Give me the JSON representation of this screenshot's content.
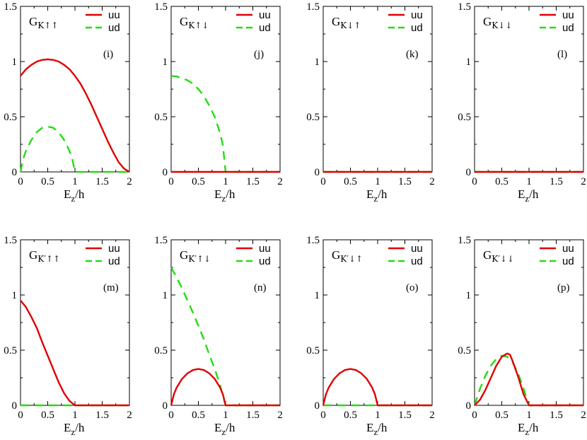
{
  "figure": {
    "colors": {
      "uu": "#e00000",
      "ud": "#22dd11"
    }
  },
  "chart_data": [
    {
      "type": "line",
      "id": "i",
      "panel_label": "(i)",
      "title_main": "G",
      "title_sub": "K↑↑",
      "xlabel_main": "E",
      "xlabel_sub": "z",
      "xlabel_tail": "/h",
      "xlim": [
        0,
        2
      ],
      "ylim": [
        0,
        1.5
      ],
      "xticks": [
        "0",
        "0.5",
        "1",
        "1.5",
        "2"
      ],
      "yticks": [
        "0",
        "0.5",
        "1",
        "1.5"
      ],
      "series": [
        {
          "name": "uu",
          "style": "solid",
          "points": [
            [
              0,
              0.87
            ],
            [
              0.1,
              0.93
            ],
            [
              0.2,
              0.97
            ],
            [
              0.3,
              1.0
            ],
            [
              0.4,
              1.015
            ],
            [
              0.5,
              1.02
            ],
            [
              0.6,
              1.015
            ],
            [
              0.7,
              1.0
            ],
            [
              0.8,
              0.97
            ],
            [
              0.9,
              0.93
            ],
            [
              1.0,
              0.87
            ],
            [
              1.1,
              0.8
            ],
            [
              1.2,
              0.71
            ],
            [
              1.3,
              0.61
            ],
            [
              1.4,
              0.5
            ],
            [
              1.5,
              0.39
            ],
            [
              1.6,
              0.28
            ],
            [
              1.7,
              0.18
            ],
            [
              1.8,
              0.09
            ],
            [
              1.9,
              0.03
            ],
            [
              2.0,
              0.0
            ]
          ]
        },
        {
          "name": "ud",
          "style": "dashed",
          "points": [
            [
              0,
              0
            ],
            [
              0.05,
              0.12
            ],
            [
              0.1,
              0.19
            ],
            [
              0.2,
              0.29
            ],
            [
              0.3,
              0.36
            ],
            [
              0.4,
              0.4
            ],
            [
              0.5,
              0.41
            ],
            [
              0.6,
              0.4
            ],
            [
              0.7,
              0.36
            ],
            [
              0.8,
              0.29
            ],
            [
              0.9,
              0.19
            ],
            [
              0.95,
              0.12
            ],
            [
              1.0,
              0
            ],
            [
              1.2,
              0
            ],
            [
              1.4,
              0
            ],
            [
              1.6,
              0
            ],
            [
              1.8,
              0
            ],
            [
              2.0,
              0
            ]
          ]
        }
      ]
    },
    {
      "type": "line",
      "id": "j",
      "panel_label": "(j)",
      "title_main": "G",
      "title_sub": "K↑↓",
      "xlabel_main": "E",
      "xlabel_sub": "z",
      "xlabel_tail": "/h",
      "xlim": [
        0,
        2
      ],
      "ylim": [
        0,
        1.5
      ],
      "xticks": [
        "0",
        "0.5",
        "1",
        "1.5",
        "2"
      ],
      "yticks": [
        "0",
        "0.5",
        "1",
        "1.5"
      ],
      "series": [
        {
          "name": "uu",
          "style": "solid",
          "points": [
            [
              0,
              0
            ],
            [
              2,
              0
            ]
          ]
        },
        {
          "name": "ud",
          "style": "dashed",
          "points": [
            [
              0,
              0.87
            ],
            [
              0.1,
              0.865
            ],
            [
              0.2,
              0.85
            ],
            [
              0.3,
              0.83
            ],
            [
              0.4,
              0.8
            ],
            [
              0.5,
              0.75
            ],
            [
              0.6,
              0.69
            ],
            [
              0.7,
              0.6
            ],
            [
              0.8,
              0.5
            ],
            [
              0.9,
              0.35
            ],
            [
              0.95,
              0.24
            ],
            [
              1.0,
              0
            ],
            [
              1.5,
              0
            ],
            [
              2.0,
              0
            ]
          ]
        }
      ]
    },
    {
      "type": "line",
      "id": "k",
      "panel_label": "(k)",
      "title_main": "G",
      "title_sub": "K↓↑",
      "xlabel_main": "E",
      "xlabel_sub": "z",
      "xlabel_tail": "/h",
      "xlim": [
        0,
        2
      ],
      "ylim": [
        0,
        1.5
      ],
      "xticks": [
        "0",
        "0.5",
        "1",
        "1.5",
        "2"
      ],
      "yticks": [
        "0",
        "0.5",
        "1",
        "1.5"
      ],
      "series": [
        {
          "name": "uu",
          "style": "solid",
          "points": [
            [
              0,
              0
            ],
            [
              2,
              0
            ]
          ]
        },
        {
          "name": "ud",
          "style": "dashed",
          "points": [
            [
              0,
              0
            ],
            [
              2,
              0
            ]
          ]
        }
      ]
    },
    {
      "type": "line",
      "id": "l",
      "panel_label": "(l)",
      "title_main": "G",
      "title_sub": "K↓↓",
      "xlabel_main": "E",
      "xlabel_sub": "z",
      "xlabel_tail": "/h",
      "xlim": [
        0,
        2
      ],
      "ylim": [
        0,
        1.5
      ],
      "xticks": [
        "0",
        "0.5",
        "1",
        "1.5",
        "2"
      ],
      "yticks": [
        "0",
        "0.5",
        "1",
        "1.5"
      ],
      "series": [
        {
          "name": "uu",
          "style": "solid",
          "points": [
            [
              0,
              0
            ],
            [
              2,
              0
            ]
          ]
        },
        {
          "name": "ud",
          "style": "dashed",
          "points": [
            [
              0,
              0
            ],
            [
              2,
              0
            ]
          ]
        }
      ]
    },
    {
      "type": "line",
      "id": "m",
      "panel_label": "(m)",
      "title_main": "G",
      "title_sub": "K′↑↑",
      "xlabel_main": "E",
      "xlabel_sub": "z",
      "xlabel_tail": "/h",
      "xlim": [
        0,
        2
      ],
      "ylim": [
        0,
        1.5
      ],
      "xticks": [
        "0",
        "0.5",
        "1",
        "1.5",
        "2"
      ],
      "yticks": [
        "0",
        "0.5",
        "1",
        "1.5"
      ],
      "series": [
        {
          "name": "uu",
          "style": "solid",
          "points": [
            [
              0,
              0.95
            ],
            [
              0.1,
              0.89
            ],
            [
              0.2,
              0.8
            ],
            [
              0.3,
              0.7
            ],
            [
              0.4,
              0.57
            ],
            [
              0.5,
              0.45
            ],
            [
              0.6,
              0.33
            ],
            [
              0.7,
              0.21
            ],
            [
              0.8,
              0.11
            ],
            [
              0.9,
              0.04
            ],
            [
              1.0,
              0
            ],
            [
              1.5,
              0
            ],
            [
              2.0,
              0
            ]
          ]
        },
        {
          "name": "ud",
          "style": "dashed",
          "points": [
            [
              0,
              0
            ],
            [
              2,
              0
            ]
          ]
        }
      ]
    },
    {
      "type": "line",
      "id": "n",
      "panel_label": "(n)",
      "title_main": "G",
      "title_sub": "K′↑↓",
      "xlabel_main": "E",
      "xlabel_sub": "z",
      "xlabel_tail": "/h",
      "xlim": [
        0,
        2
      ],
      "ylim": [
        0,
        1.5
      ],
      "xticks": [
        "0",
        "0.5",
        "1",
        "1.5",
        "2"
      ],
      "yticks": [
        "0",
        "0.5",
        "1",
        "1.5"
      ],
      "series": [
        {
          "name": "uu",
          "style": "solid",
          "points": [
            [
              0,
              0
            ],
            [
              0.05,
              0.1
            ],
            [
              0.1,
              0.16
            ],
            [
              0.2,
              0.24
            ],
            [
              0.3,
              0.29
            ],
            [
              0.4,
              0.32
            ],
            [
              0.5,
              0.33
            ],
            [
              0.6,
              0.32
            ],
            [
              0.7,
              0.29
            ],
            [
              0.8,
              0.24
            ],
            [
              0.9,
              0.16
            ],
            [
              0.95,
              0.1
            ],
            [
              1.0,
              0
            ],
            [
              1.5,
              0
            ],
            [
              2.0,
              0
            ]
          ]
        },
        {
          "name": "ud",
          "style": "dashed",
          "points": [
            [
              0,
              1.25
            ],
            [
              0.1,
              1.16
            ],
            [
              0.2,
              1.06
            ],
            [
              0.3,
              0.95
            ],
            [
              0.4,
              0.84
            ],
            [
              0.5,
              0.72
            ],
            [
              0.6,
              0.6
            ],
            [
              0.7,
              0.46
            ],
            [
              0.8,
              0.33
            ],
            [
              0.9,
              0.18
            ],
            [
              1.0,
              0
            ],
            [
              1.5,
              0
            ],
            [
              2.0,
              0
            ]
          ]
        }
      ]
    },
    {
      "type": "line",
      "id": "o",
      "panel_label": "(o)",
      "title_main": "G",
      "title_sub": "K′↓↑",
      "xlabel_main": "E",
      "xlabel_sub": "z",
      "xlabel_tail": "/h",
      "xlim": [
        0,
        2
      ],
      "ylim": [
        0,
        1.5
      ],
      "xticks": [
        "0",
        "0.5",
        "1",
        "1.5",
        "2"
      ],
      "yticks": [
        "0",
        "0.5",
        "1",
        "1.5"
      ],
      "series": [
        {
          "name": "uu",
          "style": "solid",
          "points": [
            [
              0,
              0
            ],
            [
              0.05,
              0.1
            ],
            [
              0.1,
              0.16
            ],
            [
              0.2,
              0.24
            ],
            [
              0.3,
              0.29
            ],
            [
              0.4,
              0.32
            ],
            [
              0.5,
              0.33
            ],
            [
              0.6,
              0.32
            ],
            [
              0.7,
              0.29
            ],
            [
              0.8,
              0.24
            ],
            [
              0.9,
              0.16
            ],
            [
              0.95,
              0.1
            ],
            [
              1.0,
              0
            ],
            [
              1.5,
              0
            ],
            [
              2.0,
              0
            ]
          ]
        },
        {
          "name": "ud",
          "style": "dashed",
          "points": [
            [
              0,
              0
            ],
            [
              2,
              0
            ]
          ]
        }
      ]
    },
    {
      "type": "line",
      "id": "p",
      "panel_label": "(p)",
      "title_main": "G",
      "title_sub": "K′↓↓",
      "xlabel_main": "E",
      "xlabel_sub": "z",
      "xlabel_tail": "/h",
      "xlim": [
        0,
        2
      ],
      "ylim": [
        0,
        1.5
      ],
      "xticks": [
        "0",
        "0.5",
        "1",
        "1.5",
        "2"
      ],
      "yticks": [
        "0",
        "0.5",
        "1",
        "1.5"
      ],
      "series": [
        {
          "name": "uu",
          "style": "solid",
          "points": [
            [
              0,
              0
            ],
            [
              0.1,
              0.05
            ],
            [
              0.2,
              0.14
            ],
            [
              0.3,
              0.25
            ],
            [
              0.4,
              0.36
            ],
            [
              0.5,
              0.44
            ],
            [
              0.6,
              0.47
            ],
            [
              0.65,
              0.46
            ],
            [
              0.7,
              0.4
            ],
            [
              0.8,
              0.26
            ],
            [
              0.9,
              0.1
            ],
            [
              1.0,
              0
            ],
            [
              1.5,
              0
            ],
            [
              2.0,
              0
            ]
          ]
        },
        {
          "name": "ud",
          "style": "dashed",
          "points": [
            [
              0,
              0
            ],
            [
              0.1,
              0.15
            ],
            [
              0.2,
              0.27
            ],
            [
              0.3,
              0.36
            ],
            [
              0.4,
              0.42
            ],
            [
              0.5,
              0.45
            ],
            [
              0.6,
              0.44
            ],
            [
              0.7,
              0.39
            ],
            [
              0.8,
              0.29
            ],
            [
              0.9,
              0.15
            ],
            [
              1.0,
              0
            ],
            [
              1.5,
              0
            ],
            [
              2.0,
              0
            ]
          ]
        }
      ]
    }
  ]
}
